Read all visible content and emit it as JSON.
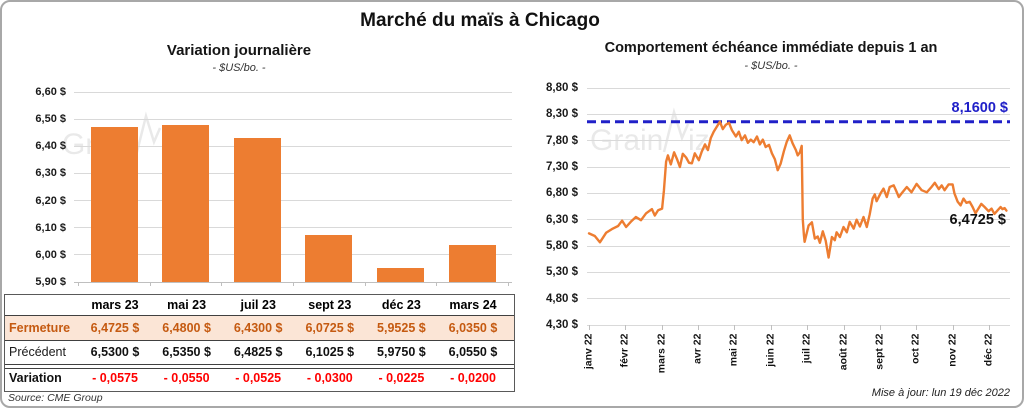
{
  "page": {
    "title": "Marché du maïs à Chicago",
    "watermark": "GrainViz",
    "source_note": "Source: CME Group",
    "update_note": "Mise à jour: lun 19 déc 2022"
  },
  "colors": {
    "orange": "#ED7D31",
    "blue": "#2020C8",
    "red": "#FF0000",
    "fermeture_text": "#C55A11",
    "fermeture_bg": "#FBE5D6",
    "grid": "#D9D9D9",
    "watermark_gray": "#D8D8D8"
  },
  "chart_data": [
    {
      "id": "variation_journaliere",
      "type": "bar",
      "title": "Variation journalière",
      "subtitle": "- $US/bo. -",
      "categories": [
        "mars 23",
        "mai 23",
        "juil 23",
        "sept 23",
        "déc 23",
        "mars 24"
      ],
      "values": [
        6.4725,
        6.48,
        6.43,
        6.0725,
        5.9525,
        6.035
      ],
      "ylabel": "$US/bo.",
      "ylim": [
        5.9,
        6.6
      ],
      "ytick_step": 0.1,
      "ytick_labels": [
        "6,60 $",
        "6,50 $",
        "6,40 $",
        "6,30 $",
        "6,20 $",
        "6,10 $",
        "6,00 $",
        "5,90 $"
      ],
      "grid": true,
      "bar_color": "#ED7D31"
    },
    {
      "id": "comportement_echeance",
      "type": "line",
      "title": "Comportement échéance immédiate depuis 1 an",
      "subtitle": "- $US/bo. -",
      "x_labels": [
        "janv 22",
        "févr 22",
        "mars 22",
        "avr 22",
        "mai 22",
        "juin 22",
        "juil 22",
        "août 22",
        "sept 22",
        "oct 22",
        "nov 22",
        "déc 22"
      ],
      "ylim": [
        4.3,
        8.8
      ],
      "ytick_step": 0.5,
      "ytick_labels": [
        "8,80 $",
        "8,30 $",
        "7,80 $",
        "7,30 $",
        "6,80 $",
        "6,30 $",
        "5,80 $",
        "5,30 $",
        "4,80 $",
        "4,30 $"
      ],
      "grid": true,
      "line_color": "#ED7D31",
      "reference_line": {
        "value": 8.16,
        "label": "8,1600 $",
        "style": "dashed",
        "color": "#2020C8"
      },
      "last_value": 6.4725,
      "last_value_label": "6,4725 $",
      "series": [
        {
          "name": "échéance immédiate",
          "points": [
            [
              0.0,
              6.04
            ],
            [
              0.16,
              5.99
            ],
            [
              0.3,
              5.87
            ],
            [
              0.47,
              6.05
            ],
            [
              0.63,
              6.12
            ],
            [
              0.8,
              6.18
            ],
            [
              0.91,
              6.28
            ],
            [
              1.02,
              6.16
            ],
            [
              1.15,
              6.26
            ],
            [
              1.29,
              6.35
            ],
            [
              1.43,
              6.29
            ],
            [
              1.57,
              6.42
            ],
            [
              1.73,
              6.5
            ],
            [
              1.81,
              6.38
            ],
            [
              1.9,
              6.48
            ],
            [
              2.01,
              6.51
            ],
            [
              2.06,
              6.85
            ],
            [
              2.12,
              7.4
            ],
            [
              2.17,
              7.52
            ],
            [
              2.25,
              7.35
            ],
            [
              2.34,
              7.58
            ],
            [
              2.42,
              7.45
            ],
            [
              2.5,
              7.3
            ],
            [
              2.58,
              7.55
            ],
            [
              2.67,
              7.48
            ],
            [
              2.75,
              7.38
            ],
            [
              2.83,
              7.37
            ],
            [
              2.91,
              7.56
            ],
            [
              3.02,
              7.43
            ],
            [
              3.1,
              7.59
            ],
            [
              3.19,
              7.73
            ],
            [
              3.27,
              7.62
            ],
            [
              3.35,
              7.85
            ],
            [
              3.43,
              7.97
            ],
            [
              3.52,
              8.07
            ],
            [
              3.6,
              8.16
            ],
            [
              3.68,
              8.02
            ],
            [
              3.76,
              8.1
            ],
            [
              3.85,
              8.14
            ],
            [
              3.93,
              8.0
            ],
            [
              4.04,
              7.88
            ],
            [
              4.12,
              7.97
            ],
            [
              4.2,
              7.81
            ],
            [
              4.29,
              7.9
            ],
            [
              4.37,
              7.76
            ],
            [
              4.45,
              7.82
            ],
            [
              4.53,
              7.77
            ],
            [
              4.62,
              7.88
            ],
            [
              4.7,
              7.73
            ],
            [
              4.78,
              7.82
            ],
            [
              4.86,
              7.68
            ],
            [
              4.95,
              7.72
            ],
            [
              5.03,
              7.56
            ],
            [
              5.11,
              7.45
            ],
            [
              5.19,
              7.24
            ],
            [
              5.27,
              7.36
            ],
            [
              5.36,
              7.6
            ],
            [
              5.44,
              7.78
            ],
            [
              5.52,
              7.9
            ],
            [
              5.6,
              7.75
            ],
            [
              5.69,
              7.62
            ],
            [
              5.74,
              7.52
            ],
            [
              5.8,
              7.58
            ],
            [
              5.85,
              7.7
            ],
            [
              5.88,
              6.3
            ],
            [
              5.91,
              6.01
            ],
            [
              5.93,
              5.88
            ],
            [
              6.04,
              6.19
            ],
            [
              6.13,
              6.25
            ],
            [
              6.21,
              5.94
            ],
            [
              6.29,
              5.98
            ],
            [
              6.35,
              5.86
            ],
            [
              6.43,
              6.08
            ],
            [
              6.51,
              5.9
            ],
            [
              6.59,
              5.58
            ],
            [
              6.68,
              5.97
            ],
            [
              6.76,
              5.91
            ],
            [
              6.81,
              6.06
            ],
            [
              6.9,
              5.97
            ],
            [
              7.0,
              6.16
            ],
            [
              7.09,
              6.06
            ],
            [
              7.17,
              6.26
            ],
            [
              7.28,
              6.13
            ],
            [
              7.36,
              6.3
            ],
            [
              7.45,
              6.17
            ],
            [
              7.55,
              6.35
            ],
            [
              7.64,
              6.16
            ],
            [
              7.72,
              6.4
            ],
            [
              7.8,
              6.7
            ],
            [
              7.86,
              6.78
            ],
            [
              7.91,
              6.65
            ],
            [
              8.02,
              6.8
            ],
            [
              8.1,
              6.89
            ],
            [
              8.19,
              6.73
            ],
            [
              8.27,
              6.92
            ],
            [
              8.38,
              6.95
            ],
            [
              8.46,
              6.83
            ],
            [
              8.52,
              6.73
            ],
            [
              8.6,
              6.8
            ],
            [
              8.74,
              6.92
            ],
            [
              8.87,
              6.82
            ],
            [
              9.01,
              6.98
            ],
            [
              9.15,
              6.86
            ],
            [
              9.29,
              6.82
            ],
            [
              9.42,
              6.92
            ],
            [
              9.51,
              7.0
            ],
            [
              9.62,
              6.88
            ],
            [
              9.7,
              6.95
            ],
            [
              9.78,
              6.86
            ],
            [
              9.89,
              6.97
            ],
            [
              10.0,
              6.97
            ],
            [
              10.05,
              6.8
            ],
            [
              10.14,
              6.64
            ],
            [
              10.22,
              6.57
            ],
            [
              10.3,
              6.7
            ],
            [
              10.38,
              6.62
            ],
            [
              10.47,
              6.64
            ],
            [
              10.55,
              6.54
            ],
            [
              10.63,
              6.42
            ],
            [
              10.71,
              6.51
            ],
            [
              10.79,
              6.6
            ],
            [
              10.88,
              6.54
            ],
            [
              10.99,
              6.46
            ],
            [
              11.07,
              6.51
            ],
            [
              11.15,
              6.41
            ],
            [
              11.23,
              6.47
            ],
            [
              11.32,
              6.54
            ],
            [
              11.37,
              6.5
            ],
            [
              11.43,
              6.52
            ],
            [
              11.48,
              6.4725
            ]
          ]
        }
      ]
    }
  ],
  "table": {
    "columns": [
      "mars 23",
      "mai 23",
      "juil 23",
      "sept 23",
      "déc 23",
      "mars 24"
    ],
    "rows": [
      {
        "label": "Fermeture",
        "values": [
          "6,4725 $",
          "6,4800 $",
          "6,4300 $",
          "6,0725 $",
          "5,9525 $",
          "6,0350 $"
        ]
      },
      {
        "label": "Précédent",
        "values": [
          "6,5300 $",
          "6,5350 $",
          "6,4825 $",
          "6,1025 $",
          "5,9750 $",
          "6,0550 $"
        ]
      },
      {
        "label": "Variation",
        "values": [
          "- 0,0575",
          "- 0,0550",
          "- 0,0525",
          "- 0,0300",
          "- 0,0225",
          "- 0,0200"
        ]
      }
    ]
  }
}
